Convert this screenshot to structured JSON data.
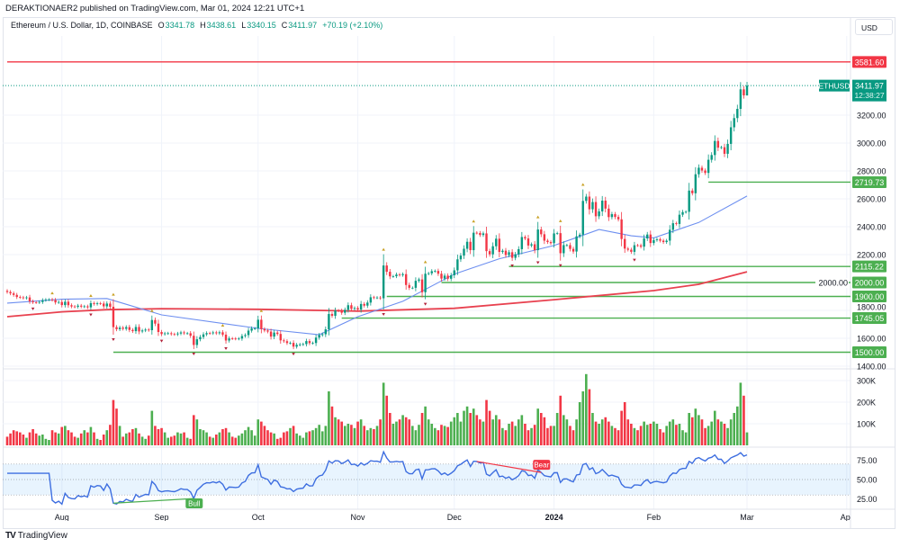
{
  "header": {
    "published": "DERAKTIONAER2 published on TradingView.com, Mar 01, 2024 12:21 UTC+1"
  },
  "legend": {
    "symbol": "Ethereum / U.S. Dollar, 1D, COINBASE",
    "open_label": "O",
    "open": "3341.78",
    "high_label": "H",
    "high": "3438.61",
    "low_label": "L",
    "low": "3340.15",
    "close_label": "C",
    "close": "3411.97",
    "change": "+70.19 (+2.10%)"
  },
  "currency_button": "USD",
  "footer": {
    "brand": "TradingView",
    "logo_icon": "tradingview-logo-icon"
  },
  "colors": {
    "up": "#089981",
    "down": "#f23645",
    "vol_up": "#4caf50",
    "vol_down": "#f23645",
    "level": "#4caf50",
    "resistance": "#f23645",
    "ma_fast": "#6d8ff0",
    "ma_slow": "#e8414f",
    "rsi": "#3d6ee0"
  },
  "chart_data": {
    "type": "candlestick",
    "interval": "1D",
    "x_range": [
      "2023-07-15",
      "2024-03-01"
    ],
    "price_axis": {
      "ylim": [
        1400,
        3600
      ],
      "ticks": [
        "1400.00",
        "1600.00",
        "1800.00",
        "2000.00",
        "2200.00",
        "2400.00",
        "2600.00",
        "2800.00",
        "3000.00",
        "3200.00"
      ]
    },
    "time_axis": [
      {
        "label": "Aug",
        "date": "2023-08-01"
      },
      {
        "label": "Sep",
        "date": "2023-09-01"
      },
      {
        "label": "Oct",
        "date": "2023-10-01"
      },
      {
        "label": "Nov",
        "date": "2023-11-01"
      },
      {
        "label": "Dec",
        "date": "2023-12-01"
      },
      {
        "label": "2024",
        "date": "2024-01-01"
      },
      {
        "label": "Feb",
        "date": "2024-02-01"
      },
      {
        "label": "Mar",
        "date": "2024-03-01"
      },
      {
        "label": "Apr",
        "date": "2024-04-01"
      }
    ],
    "closes": [
      1932,
      1922,
      1911,
      1896,
      1893,
      1889,
      1893,
      1865,
      1858,
      1857,
      1860,
      1873,
      1877,
      1878,
      1874,
      1857,
      1860,
      1838,
      1862,
      1837,
      1828,
      1826,
      1834,
      1827,
      1829,
      1822,
      1852,
      1846,
      1851,
      1849,
      1829,
      1849,
      1826,
      1680,
      1665,
      1676,
      1668,
      1680,
      1660,
      1651,
      1681,
      1649,
      1656,
      1662,
      1658,
      1731,
      1705,
      1645,
      1630,
      1635,
      1636,
      1630,
      1628,
      1634,
      1642,
      1636,
      1636,
      1618,
      1552,
      1593,
      1609,
      1628,
      1637,
      1636,
      1642,
      1636,
      1643,
      1626,
      1584,
      1599,
      1598,
      1596,
      1598,
      1616,
      1623,
      1655,
      1670,
      1671,
      1733,
      1666,
      1656,
      1648,
      1612,
      1641,
      1631,
      1585,
      1579,
      1566,
      1567,
      1540,
      1553,
      1556,
      1558,
      1580,
      1565,
      1566,
      1605,
      1623,
      1629,
      1664,
      1774,
      1761,
      1799,
      1798,
      1783,
      1804,
      1837,
      1811,
      1817,
      1806,
      1846,
      1834,
      1856,
      1894,
      1891,
      1892,
      1887,
      2122,
      2077,
      2044,
      2045,
      2057,
      2053,
      2060,
      1982,
      1962,
      1962,
      2012,
      2022,
      1930,
      2063,
      2066,
      2081,
      2083,
      2063,
      2028,
      2049,
      2027,
      2052,
      2087,
      2166,
      2193,
      2242,
      2292,
      2232,
      2357,
      2355,
      2341,
      2352,
      2225,
      2202,
      2260,
      2314,
      2219,
      2228,
      2197,
      2217,
      2177,
      2202,
      2239,
      2326,
      2316,
      2265,
      2274,
      2232,
      2380,
      2346,
      2300,
      2290,
      2282,
      2352,
      2354,
      2210,
      2268,
      2268,
      2241,
      2222,
      2331,
      2343,
      2585,
      2616,
      2525,
      2577,
      2475,
      2510,
      2587,
      2530,
      2469,
      2490,
      2470,
      2453,
      2312,
      2243,
      2235,
      2220,
      2267,
      2266,
      2257,
      2316,
      2344,
      2283,
      2304,
      2310,
      2300,
      2290,
      2300,
      2378,
      2425,
      2420,
      2486,
      2505,
      2507,
      2659,
      2640,
      2776,
      2823,
      2803,
      2786,
      2880,
      2914,
      3015,
      2967,
      2970,
      2923,
      2994,
      3113,
      3179,
      3245,
      3385,
      3341.78,
      3411.97
    ],
    "last": {
      "open": 3341.78,
      "high": 3438.61,
      "low": 3340.15,
      "close": 3411.97
    },
    "volume_k": [
      40,
      55,
      70,
      65,
      60,
      50,
      35,
      60,
      75,
      55,
      45,
      50,
      30,
      25,
      70,
      60,
      55,
      85,
      90,
      70,
      60,
      40,
      35,
      55,
      70,
      60,
      85,
      60,
      30,
      25,
      50,
      70,
      95,
      210,
      170,
      90,
      40,
      55,
      60,
      75,
      80,
      55,
      40,
      30,
      45,
      160,
      90,
      75,
      80,
      60,
      35,
      40,
      45,
      60,
      55,
      60,
      35,
      30,
      140,
      120,
      75,
      70,
      60,
      40,
      35,
      50,
      60,
      75,
      80,
      60,
      40,
      35,
      45,
      55,
      70,
      85,
      70,
      45,
      120,
      110,
      90,
      70,
      60,
      55,
      30,
      35,
      60,
      65,
      80,
      90,
      55,
      45,
      35,
      60,
      65,
      70,
      80,
      95,
      65,
      90,
      250,
      180,
      130,
      120,
      110,
      90,
      100,
      95,
      80,
      110,
      120,
      90,
      70,
      80,
      75,
      90,
      120,
      290,
      230,
      150,
      100,
      110,
      120,
      140,
      130,
      120,
      90,
      70,
      95,
      150,
      180,
      120,
      100,
      80,
      70,
      95,
      90,
      85,
      110,
      130,
      150,
      110,
      160,
      180,
      150,
      170,
      140,
      120,
      110,
      210,
      160,
      120,
      140,
      120,
      80,
      70,
      100,
      110,
      90,
      120,
      140,
      100,
      70,
      80,
      95,
      170,
      150,
      130,
      80,
      90,
      90,
      150,
      230,
      140,
      120,
      90,
      70,
      120,
      200,
      250,
      330,
      260,
      150,
      110,
      100,
      120,
      130,
      110,
      90,
      80,
      70,
      160,
      200,
      120,
      100,
      80,
      70,
      90,
      110,
      95,
      100,
      110,
      100,
      75,
      60,
      90,
      110,
      120,
      95,
      100,
      70,
      60,
      150,
      130,
      170,
      140,
      120,
      80,
      90,
      110,
      160,
      120,
      110,
      100,
      80,
      120,
      150,
      180,
      290,
      230,
      60
    ],
    "volume_axis": {
      "ticks": [
        {
          "value": 100,
          "label": "100K"
        },
        {
          "value": 200,
          "label": "200K"
        },
        {
          "value": 300,
          "label": "300K"
        }
      ]
    },
    "ma_fast": [
      {
        "date": "2023-07-15",
        "value": 1852
      },
      {
        "date": "2023-08-01",
        "value": 1880
      },
      {
        "date": "2023-08-15",
        "value": 1885
      },
      {
        "date": "2023-09-01",
        "value": 1768
      },
      {
        "date": "2023-10-01",
        "value": 1671
      },
      {
        "date": "2023-10-20",
        "value": 1626
      },
      {
        "date": "2023-11-01",
        "value": 1755
      },
      {
        "date": "2023-11-15",
        "value": 1865
      },
      {
        "date": "2023-12-01",
        "value": 2060
      },
      {
        "date": "2023-12-15",
        "value": 2170
      },
      {
        "date": "2024-01-01",
        "value": 2265
      },
      {
        "date": "2024-01-15",
        "value": 2380
      },
      {
        "date": "2024-01-25",
        "value": 2335
      },
      {
        "date": "2024-02-01",
        "value": 2320
      },
      {
        "date": "2024-02-15",
        "value": 2430
      },
      {
        "date": "2024-03-01",
        "value": 2620
      }
    ],
    "ma_slow": [
      {
        "date": "2023-07-15",
        "value": 1755
      },
      {
        "date": "2023-08-01",
        "value": 1790
      },
      {
        "date": "2023-08-15",
        "value": 1805
      },
      {
        "date": "2023-09-01",
        "value": 1812
      },
      {
        "date": "2023-10-01",
        "value": 1808
      },
      {
        "date": "2023-11-01",
        "value": 1795
      },
      {
        "date": "2023-12-01",
        "value": 1815
      },
      {
        "date": "2024-01-01",
        "value": 1877
      },
      {
        "date": "2024-02-01",
        "value": 1942
      },
      {
        "date": "2024-02-15",
        "value": 1987
      },
      {
        "date": "2024-03-01",
        "value": 2077
      }
    ],
    "levels": [
      {
        "label": "3581.60",
        "value": 3581.6,
        "color": "#f23645",
        "from": "2023-07-15"
      },
      {
        "label": "2719.73",
        "value": 2719.73,
        "color": "#4caf50",
        "from": "2024-02-18"
      },
      {
        "label": "2115.22",
        "value": 2115.22,
        "color": "#4caf50",
        "from": "2023-12-18"
      },
      {
        "label": "2000.00",
        "value": 2000.0,
        "color": "#4caf50",
        "from": "2023-11-27"
      },
      {
        "label": "1900.00",
        "value": 1900.0,
        "color": "#4caf50",
        "from": "2023-11-10"
      },
      {
        "label": "1745.05",
        "value": 1745.05,
        "color": "#4caf50",
        "from": "2023-10-27"
      },
      {
        "label": "1500.00",
        "value": 1500.0,
        "color": "#4caf50",
        "from": "2023-08-17"
      }
    ],
    "last_price": {
      "symbol": "ETHUSD",
      "price": "3411.97",
      "value": 3411.97,
      "countdown": "12:38:27"
    },
    "rsi": {
      "period": 14,
      "ticks": [
        "25.00",
        "50.00",
        "75.00"
      ],
      "band": [
        30,
        70
      ]
    },
    "divergences": [
      {
        "label": "Bull",
        "from": "2023-08-17",
        "to": "2023-09-11",
        "color": "#4caf50"
      },
      {
        "label": "Bear",
        "from": "2023-12-08",
        "to": "2023-12-28",
        "color": "#f23645"
      }
    ]
  }
}
